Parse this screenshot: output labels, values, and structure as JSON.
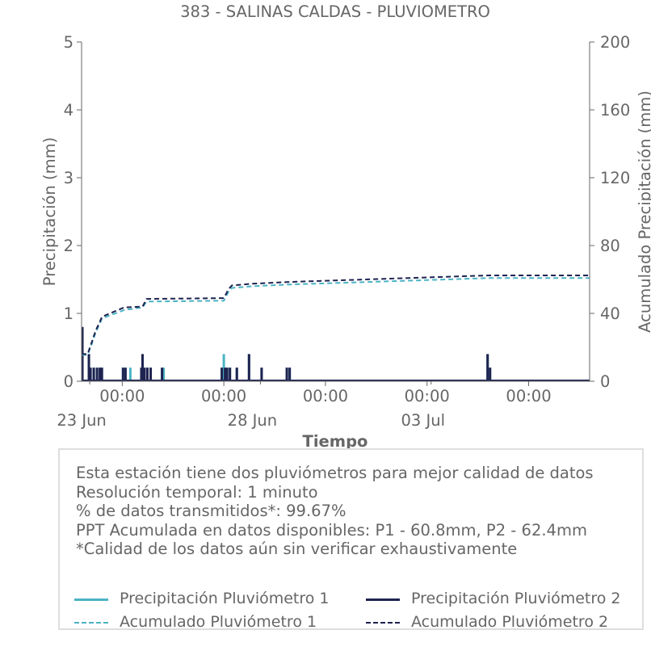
{
  "chart_data": {
    "type": "bar",
    "title": "383 - SALINAS CALDAS - PLUVIOMETRO",
    "xlabel": "Tiempo",
    "ylabel": "Precipitación (mm)",
    "y2label": "Acumulado Precipitación (mm)",
    "ylim": [
      0,
      5
    ],
    "y2lim": [
      0,
      200
    ],
    "yticks": [
      "0",
      "1",
      "2",
      "3",
      "4",
      "5"
    ],
    "y2ticks": [
      "0",
      "40",
      "80",
      "120",
      "160",
      "200"
    ],
    "xlim_days": [
      0,
      12.5
    ],
    "xticks": [
      {
        "day": 1.0,
        "time": "00:00",
        "date": ""
      },
      {
        "day": 3.5,
        "time": "00:00",
        "date": ""
      },
      {
        "day": 6.0,
        "time": "00:00",
        "date": ""
      },
      {
        "day": 8.5,
        "time": "00:00",
        "date": ""
      },
      {
        "day": 11.0,
        "time": "00:00",
        "date": ""
      }
    ],
    "date_labels": [
      {
        "day": 0.2,
        "label": "23 Jun"
      },
      {
        "day": 4.4,
        "label": "28 Jun"
      },
      {
        "day": 8.6,
        "label": "03 Jul"
      }
    ],
    "x_unit": "days since 23 Jun 00:00",
    "series": [
      {
        "name": "Precipitación Pluviómetro 1",
        "color": "#4ab3c4",
        "style": "bar",
        "x": [
          0.02,
          0.18,
          0.22,
          0.3,
          0.38,
          0.45,
          0.5,
          1.02,
          1.08,
          1.2,
          1.47,
          1.5,
          1.55,
          1.62,
          1.7,
          1.98,
          2.02,
          3.45,
          3.5,
          3.53,
          3.58,
          3.65,
          3.82,
          4.12,
          4.43,
          5.05,
          5.12,
          9.99,
          10.05
        ],
        "values": [
          0.2,
          0.4,
          0.2,
          0.2,
          0.2,
          0.2,
          0.2,
          0.2,
          0.2,
          0.2,
          0.2,
          0.4,
          0.2,
          0.2,
          0.2,
          0.2,
          0.2,
          0.2,
          0.4,
          0.2,
          0.2,
          0.2,
          0.2,
          0.4,
          0.2,
          0.2,
          0.2,
          0.4,
          0.2
        ]
      },
      {
        "name": "Precipitación Pluviómetro 2",
        "color": "#1f2350",
        "style": "bar",
        "x": [
          0.02,
          0.18,
          0.22,
          0.3,
          0.38,
          0.45,
          0.5,
          1.02,
          1.08,
          1.47,
          1.5,
          1.55,
          1.62,
          1.7,
          1.98,
          3.45,
          3.53,
          3.58,
          3.65,
          3.82,
          4.12,
          4.43,
          5.05,
          5.12,
          9.99,
          10.05
        ],
        "values": [
          0.8,
          0.4,
          0.2,
          0.2,
          0.2,
          0.2,
          0.2,
          0.2,
          0.2,
          0.2,
          0.4,
          0.2,
          0.2,
          0.2,
          0.2,
          0.2,
          0.2,
          0.2,
          0.2,
          0.2,
          0.4,
          0.2,
          0.2,
          0.2,
          0.4,
          0.2
        ]
      },
      {
        "name": "Acumulado Pluviómetro 1",
        "color": "#4ab3c4",
        "style": "dashed-step",
        "axis": "right",
        "x": [
          0.0,
          0.15,
          0.25,
          0.35,
          0.45,
          0.5,
          1.05,
          1.5,
          1.6,
          3.5,
          3.62,
          3.7,
          4.2,
          5.1,
          10.0,
          12.5
        ],
        "values": [
          15.5,
          15.5,
          22,
          29,
          34,
          37,
          42,
          43.5,
          47,
          47.5,
          53,
          55,
          56,
          57,
          60.8,
          60.8
        ]
      },
      {
        "name": "Acumulado Pluviómetro 2",
        "color": "#1f2350",
        "style": "dashed-step",
        "axis": "right",
        "x": [
          0.0,
          0.15,
          0.25,
          0.35,
          0.45,
          0.5,
          1.05,
          1.5,
          1.6,
          3.5,
          3.62,
          3.7,
          4.2,
          5.1,
          10.0,
          12.5
        ],
        "values": [
          16,
          16,
          23,
          30,
          35,
          38,
          43.5,
          44,
          48.5,
          49,
          54.5,
          56.5,
          57.5,
          58.5,
          62.4,
          62.4
        ]
      }
    ]
  },
  "info": {
    "lines": [
      "Esta estación tiene dos pluviómetros para mejor calidad de datos",
      "Resolución temporal: 1 minuto",
      "% de datos transmitidos*: 99.67%",
      "PPT Acumulada en datos disponibles: P1 - 60.8mm, P2 - 62.4mm",
      "*Calidad de los datos aún sin verificar exhaustivamente"
    ]
  },
  "legend": [
    {
      "label": "Precipitación Pluviómetro 1",
      "color": "#4ab3c4",
      "style": "solid"
    },
    {
      "label": "Precipitación Pluviómetro 2",
      "color": "#1f2350",
      "style": "solid"
    },
    {
      "label": "Acumulado Pluviómetro 1",
      "color": "#4ab3c4",
      "style": "dashed"
    },
    {
      "label": "Acumulado Pluviómetro 2",
      "color": "#1f2350",
      "style": "dashed"
    }
  ]
}
